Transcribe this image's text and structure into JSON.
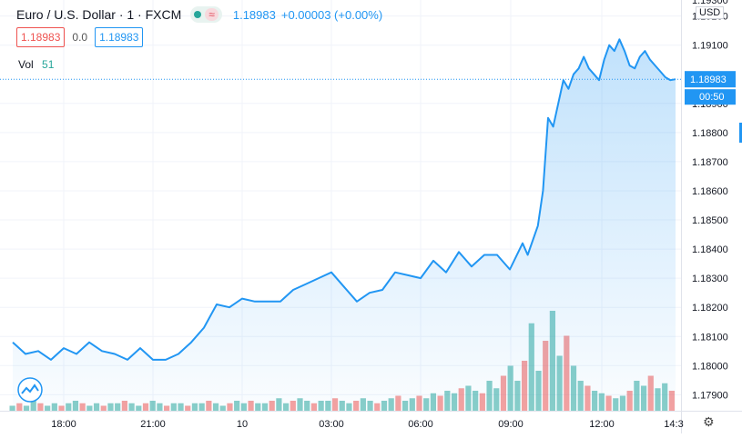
{
  "legend": {
    "symbol": "Euro / U.S. Dollar · 1 · FXCM",
    "wave_icon": "≈",
    "last_price": "1.18983",
    "change": "+0.00003 (+0.00%)",
    "sell": "1.18983",
    "spread": "0.0",
    "buy": "1.18983",
    "vol_label": "Vol",
    "vol_value": "51"
  },
  "axis": {
    "currency": "USD",
    "price_tag": "1.18983",
    "countdown": "00:50",
    "top_cut_label": "1.19300"
  },
  "colors": {
    "line": "#2196f3",
    "up_volume": "#26a69a",
    "down_volume": "#ef5350",
    "price_tag_bg": "#2196f3"
  },
  "icons": {
    "settings": "gear-icon",
    "status": "dot-icon",
    "logo": "tradingview-logo-icon"
  },
  "chart_data": {
    "type": "area",
    "title": "Euro / U.S. Dollar · 1 · FXCM",
    "x_ticks": [
      "18:00",
      "21:00",
      "10",
      "03:00",
      "06:00",
      "09:00",
      "12:00",
      "14:3"
    ],
    "y_ticks": [
      "1.19200",
      "1.19100",
      "1.18900",
      "1.18800",
      "1.18700",
      "1.18600",
      "1.18500",
      "1.18400",
      "1.18300",
      "1.18200",
      "1.18100",
      "1.18000",
      "1.17900"
    ],
    "ylim": [
      1.17845,
      1.19255
    ],
    "last_value": 1.18983,
    "grid": true,
    "series": [
      {
        "x": [
          0,
          0.5,
          1,
          1.5,
          2,
          2.5,
          3,
          3.5,
          4,
          4.5,
          5,
          5.5,
          6,
          6.5,
          7,
          7.5,
          8,
          8.5,
          9,
          9.5,
          10,
          10.5,
          11,
          11.5,
          12,
          12.5,
          13,
          13.5,
          14,
          14.5,
          15,
          15.5,
          16,
          16.5,
          17,
          17.5,
          18,
          18.5,
          19,
          19.5,
          20,
          20.2,
          20.4,
          20.6,
          20.8,
          21,
          21.2,
          21.4,
          21.6,
          21.8,
          22,
          22.2,
          22.4,
          22.6,
          22.8,
          23,
          23.2,
          23.4,
          23.6,
          23.8,
          24,
          24.2,
          24.4,
          24.6,
          24.8,
          25,
          25.2,
          25.4,
          25.6,
          25.8,
          26
        ],
        "values": [
          1.1808,
          1.1804,
          1.1805,
          1.1802,
          1.1806,
          1.1804,
          1.1808,
          1.1805,
          1.1804,
          1.1802,
          1.1806,
          1.1802,
          1.1802,
          1.1804,
          1.1808,
          1.1813,
          1.1821,
          1.182,
          1.1823,
          1.1822,
          1.1822,
          1.1822,
          1.1826,
          1.1828,
          1.183,
          1.1832,
          1.1827,
          1.1822,
          1.1825,
          1.1826,
          1.1832,
          1.1831,
          1.183,
          1.1836,
          1.1832,
          1.1839,
          1.1834,
          1.1838,
          1.1838,
          1.1833,
          1.1842,
          1.1838,
          1.1843,
          1.1848,
          1.186,
          1.1885,
          1.1882,
          1.189,
          1.1898,
          1.1895,
          1.19,
          1.1902,
          1.1906,
          1.1902,
          1.19,
          1.1898,
          1.1905,
          1.191,
          1.1908,
          1.1912,
          1.1908,
          1.1903,
          1.1902,
          1.1906,
          1.1908,
          1.1905,
          1.1903,
          1.1901,
          1.1899,
          1.1898,
          1.18983
        ]
      }
    ],
    "volume": [
      2,
      3,
      2,
      4,
      3,
      2,
      3,
      2,
      3,
      4,
      3,
      2,
      3,
      2,
      3,
      3,
      4,
      3,
      2,
      3,
      4,
      3,
      2,
      3,
      3,
      2,
      3,
      3,
      4,
      3,
      2,
      3,
      4,
      3,
      4,
      3,
      3,
      4,
      5,
      3,
      4,
      5,
      4,
      3,
      4,
      4,
      5,
      4,
      3,
      4,
      5,
      4,
      3,
      4,
      5,
      6,
      4,
      5,
      6,
      5,
      7,
      6,
      8,
      7,
      9,
      10,
      8,
      7,
      12,
      9,
      14,
      18,
      12,
      20,
      35,
      16,
      28,
      40,
      22,
      30,
      18,
      12,
      10,
      8,
      7,
      6,
      5,
      6,
      8,
      12,
      10,
      14,
      9,
      11,
      8
    ]
  }
}
